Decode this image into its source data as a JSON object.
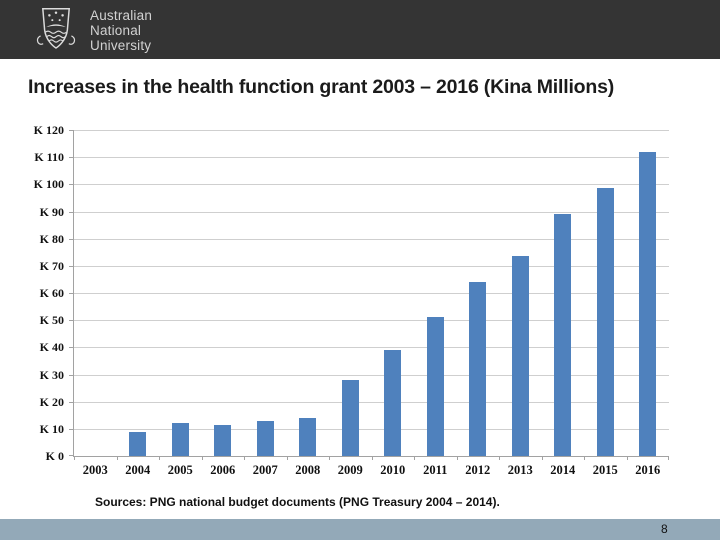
{
  "header": {
    "university_name_lines": [
      "Australian",
      "National",
      "University"
    ]
  },
  "slide": {
    "title": "Increases in the health function grant 2003 – 2016 (Kina Millions)",
    "source_note": "Sources: PNG national budget documents (PNG Treasury 2004 – 2014).",
    "page_number": "8"
  },
  "colors": {
    "banner_bg": "#343434",
    "logo_text": "#d2d2d2",
    "footer_bg": "#93a9b8",
    "bar_fill": "#4f81bd",
    "gridline": "#cfcfcf",
    "axis_line": "#a2a2a2",
    "text": "#1b1b1b"
  },
  "chart_data": {
    "type": "bar",
    "categories": [
      "2003",
      "2004",
      "2005",
      "2006",
      "2007",
      "2008",
      "2009",
      "2010",
      "2011",
      "2012",
      "2013",
      "2014",
      "2015",
      "2016"
    ],
    "values": [
      0,
      9,
      12,
      11.5,
      13,
      14,
      28,
      39,
      51,
      64,
      73.5,
      89,
      98.5,
      112
    ],
    "title": "Increases in the health function grant 2003 – 2016 (Kina Millions)",
    "xlabel": "",
    "ylabel": "",
    "ylim": [
      0,
      120
    ],
    "ytick_step": 10,
    "ytick_label_prefix": "K ",
    "grid": true,
    "legend": false,
    "bar_color": "#4f81bd"
  }
}
